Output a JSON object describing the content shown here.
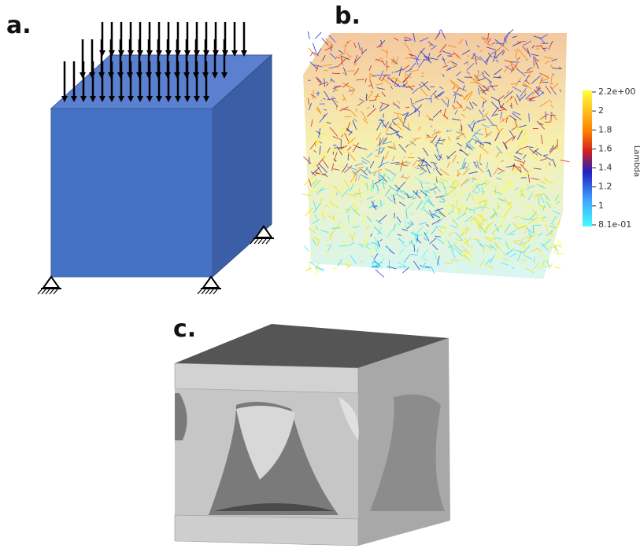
{
  "panels": {
    "a": {
      "label": "a."
    },
    "b": {
      "label": "b.",
      "colorbar": {
        "title": "Lambda",
        "ticks": [
          "2.2e+00",
          "2",
          "1.8",
          "1.6",
          "1.4",
          "1.2",
          "1",
          "8.1e-01"
        ]
      }
    },
    "c": {
      "label": "c."
    }
  }
}
